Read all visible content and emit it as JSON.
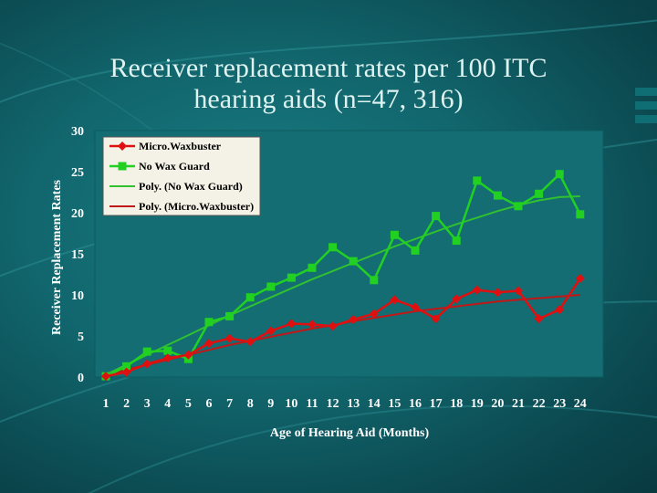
{
  "slide": {
    "title_line1": "Receiver replacement rates per 100 ITC",
    "title_line2": "hearing aids (n=47, 316)"
  },
  "colors": {
    "micro": "#e01010",
    "nowax": "#22d022",
    "poly_nowax": "#30c030",
    "poly_micro": "#c01818",
    "plot_bg": "#136d73",
    "legend_bg": "#f4f2e6"
  },
  "chart_data": {
    "type": "line",
    "xlabel": "Age of Hearing Aid (Months)",
    "ylabel": "Receiver Replacement Rates",
    "ylim": [
      0,
      30
    ],
    "yticks": [
      0,
      5,
      10,
      15,
      20,
      25,
      30
    ],
    "categories": [
      "1",
      "2",
      "3",
      "4",
      "5",
      "6",
      "7",
      "8",
      "9",
      "10",
      "11",
      "12",
      "13",
      "14",
      "15",
      "16",
      "17",
      "18",
      "19",
      "20",
      "21",
      "22",
      "23",
      "24"
    ],
    "legend_position": "top-left",
    "grid": false,
    "series": [
      {
        "name": "Micro.Waxbuster",
        "marker": "diamond",
        "values": [
          0.1,
          0.6,
          1.6,
          2.3,
          2.7,
          4.1,
          4.7,
          4.3,
          5.6,
          6.5,
          6.4,
          6.2,
          7.0,
          7.7,
          9.4,
          8.5,
          7.1,
          9.5,
          10.6,
          10.3,
          10.5,
          7.1,
          8.2,
          12.0
        ]
      },
      {
        "name": "No Wax Guard",
        "marker": "square",
        "values": [
          0.1,
          1.3,
          3.1,
          3.2,
          2.2,
          6.7,
          7.4,
          9.7,
          11.0,
          12.1,
          13.3,
          15.8,
          14.1,
          11.8,
          17.3,
          15.4,
          19.6,
          16.6,
          23.9,
          22.1,
          20.8,
          22.3,
          24.7,
          19.8
        ]
      },
      {
        "name": "Poly. (No Wax Guard)",
        "kind": "trendline",
        "values": [
          0.3,
          1.5,
          2.7,
          3.9,
          5.1,
          6.3,
          7.5,
          8.6,
          9.7,
          10.8,
          11.9,
          12.9,
          13.9,
          14.9,
          15.9,
          16.8,
          17.7,
          18.6,
          19.4,
          20.2,
          20.9,
          21.5,
          21.9,
          22.0
        ]
      },
      {
        "name": "Poly. (Micro.Waxbuster)",
        "kind": "trendline",
        "values": [
          0.3,
          0.9,
          1.5,
          2.1,
          2.7,
          3.3,
          3.9,
          4.4,
          4.9,
          5.4,
          5.9,
          6.3,
          6.8,
          7.2,
          7.6,
          8.0,
          8.3,
          8.6,
          8.9,
          9.2,
          9.4,
          9.6,
          9.8,
          10.0
        ]
      }
    ]
  }
}
